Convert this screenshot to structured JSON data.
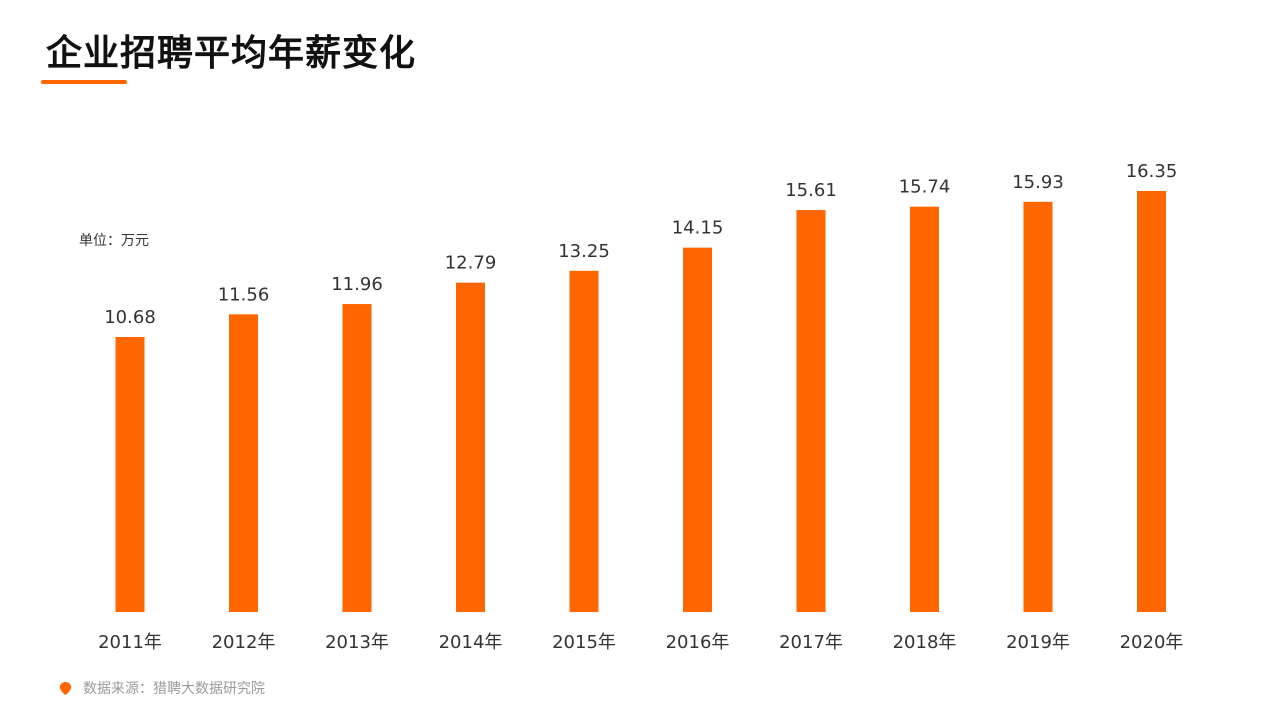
{
  "header": {
    "title": "企业招聘平均年薪变化"
  },
  "unit_label": "单位：万元",
  "source": {
    "icon": "location-pin-icon",
    "text": "数据来源：猎聘大数据研究院"
  },
  "colors": {
    "accent": "#ff6600",
    "bar": "#ff6600",
    "value_label": "#333333",
    "tick_label": "#333333"
  },
  "chart_data": {
    "type": "bar",
    "title": "企业招聘平均年薪变化",
    "xlabel": "",
    "ylabel": "单位：万元",
    "categories": [
      "2011年",
      "2012年",
      "2013年",
      "2014年",
      "2015年",
      "2016年",
      "2017年",
      "2018年",
      "2019年",
      "2020年"
    ],
    "values": [
      10.68,
      11.56,
      11.96,
      12.79,
      13.25,
      14.15,
      15.61,
      15.74,
      15.93,
      16.35
    ],
    "value_labels": [
      "10.68",
      "11.56",
      "11.96",
      "12.79",
      "13.25",
      "14.15",
      "15.61",
      "15.74",
      "15.93",
      "16.35"
    ],
    "ylim": [
      0,
      16.35
    ],
    "grid": false,
    "legend": "none"
  }
}
